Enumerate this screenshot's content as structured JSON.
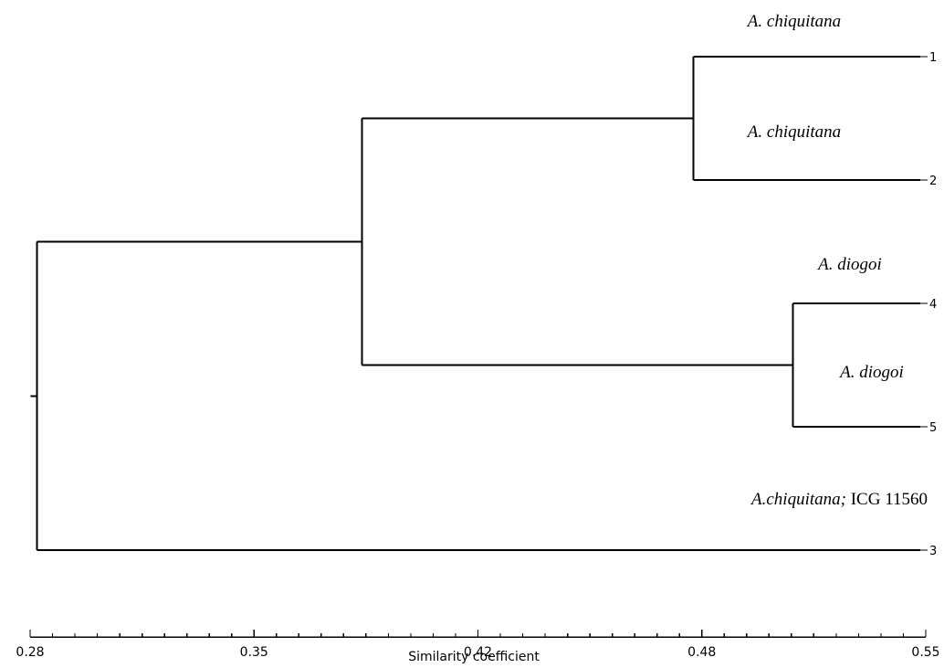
{
  "chart_data": {
    "type": "dendrogram",
    "xlabel": "Similarity coefficient",
    "xlim": [
      0.28,
      0.55
    ],
    "major_ticks": [
      "0.28",
      "0.35",
      "0.42",
      "0.48",
      "0.55"
    ],
    "leaf_order": [
      "1",
      "2",
      "4",
      "5",
      "3"
    ],
    "leaves": [
      {
        "id": "1",
        "annotation": [
          {
            "text": "A. chiquitana",
            "italic": true
          }
        ]
      },
      {
        "id": "2",
        "annotation": [
          {
            "text": "A. chiquitana",
            "italic": true
          }
        ]
      },
      {
        "id": "4",
        "annotation": [
          {
            "text": "A. diogoi",
            "italic": true
          }
        ]
      },
      {
        "id": "5",
        "annotation": [
          {
            "text": "A. diogoi",
            "italic": true
          }
        ]
      },
      {
        "id": "3",
        "annotation": [
          {
            "text": "A.chiquitana;",
            "italic": true
          },
          {
            "text": " ICG 11560",
            "italic": false
          }
        ]
      }
    ],
    "merges": [
      {
        "children": [
          "1",
          "2"
        ],
        "similarity": 0.48
      },
      {
        "children": [
          "4",
          "5"
        ],
        "similarity": 0.51
      },
      {
        "children": [
          "1-2",
          "4-5"
        ],
        "similarity": 0.38
      },
      {
        "children": [
          "1-2-4-5",
          "3"
        ],
        "similarity": 0.282
      }
    ]
  }
}
